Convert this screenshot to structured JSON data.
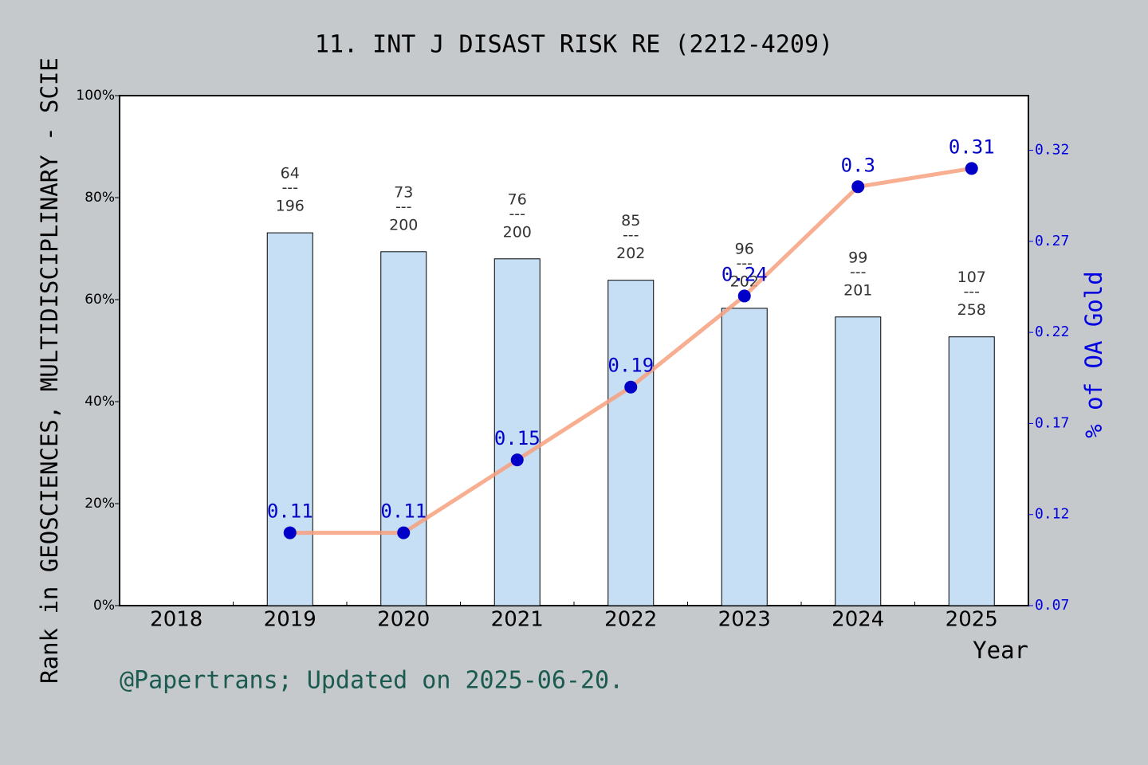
{
  "chart_data": {
    "type": "bar",
    "title": "11. INT J DISAST RISK RE (2212-4209)",
    "ylabel": "Rank in GEOSCIENCES, MULTIDISCIPLINARY - SCIE",
    "y2label": "% of OA Gold",
    "xlabel": "Year",
    "footer": "@Papertrans; Updated on 2025-06-20.",
    "categories": [
      "2018",
      "2019",
      "2020",
      "2021",
      "2022",
      "2023",
      "2024",
      "2025"
    ],
    "series": [
      {
        "type": "bar",
        "color": "#c6dff5",
        "values": [
          null,
          73.1,
          69.4,
          68.0,
          63.8,
          58.3,
          56.6,
          52.7
        ],
        "ranks": [
          null,
          64,
          73,
          76,
          85,
          96,
          99,
          107
        ],
        "separator": "---",
        "totals": [
          null,
          196,
          200,
          200,
          202,
          202,
          201,
          258
        ]
      },
      {
        "type": "line",
        "axis": "y2",
        "color": "#f7a07c",
        "marker_color": "#0000c8",
        "values": [
          null,
          0.11,
          0.11,
          0.15,
          0.19,
          0.24,
          0.3,
          0.31
        ]
      }
    ],
    "ylim": [
      0,
      100
    ],
    "yticks": [
      {
        "value": 0,
        "label": "0%"
      },
      {
        "value": 20,
        "label": "20%"
      },
      {
        "value": 40,
        "label": "40%"
      },
      {
        "value": 60,
        "label": "60%"
      },
      {
        "value": 80,
        "label": "80%"
      },
      {
        "value": 100,
        "label": "100%"
      }
    ],
    "y2lim": [
      0.07,
      0.35
    ],
    "y2ticks": [
      0.07,
      0.12,
      0.17,
      0.22,
      0.27,
      0.32
    ]
  }
}
